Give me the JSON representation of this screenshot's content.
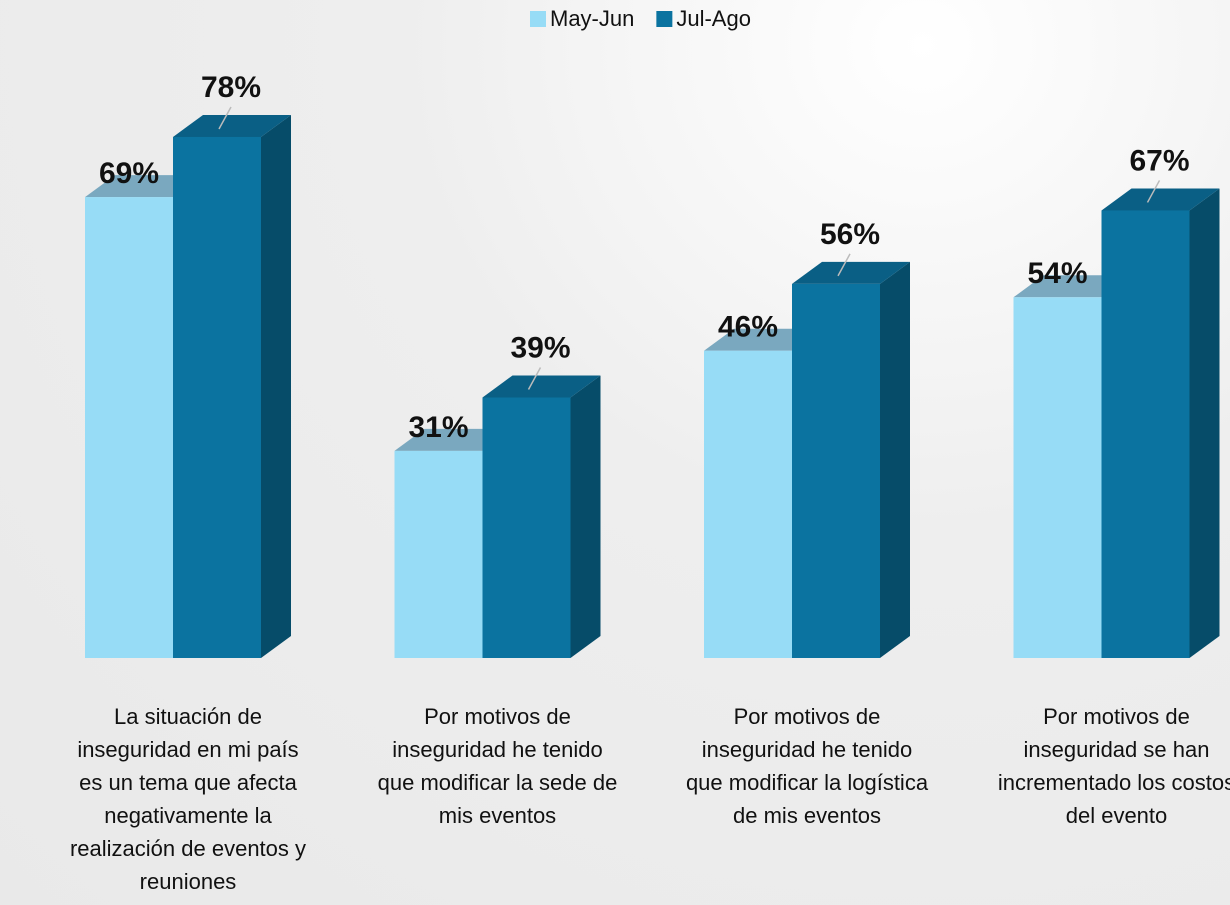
{
  "chart_data": {
    "type": "bar3d",
    "categories": [
      "La situación de inseguridad en mi país es un tema que afecta negativamente la realización de eventos y reuniones",
      "Por motivos de inseguridad he tenido que modificar la sede de mis eventos",
      "Por motivos de inseguridad he tenido que modificar la logística de mis eventos",
      "Por motivos de inseguridad se han incrementado los costos del evento"
    ],
    "series": [
      {
        "name": "May-Jun",
        "color": "#97dcf6",
        "values": [
          69,
          31,
          46,
          54
        ],
        "value_labels": [
          "69%",
          "31%",
          "46%",
          "54%"
        ]
      },
      {
        "name": "Jul-Ago",
        "color": "#0b73a0",
        "values": [
          78,
          39,
          56,
          67
        ],
        "value_labels": [
          "78%",
          "39%",
          "56%",
          "67%"
        ]
      }
    ],
    "legend": "top"
  }
}
